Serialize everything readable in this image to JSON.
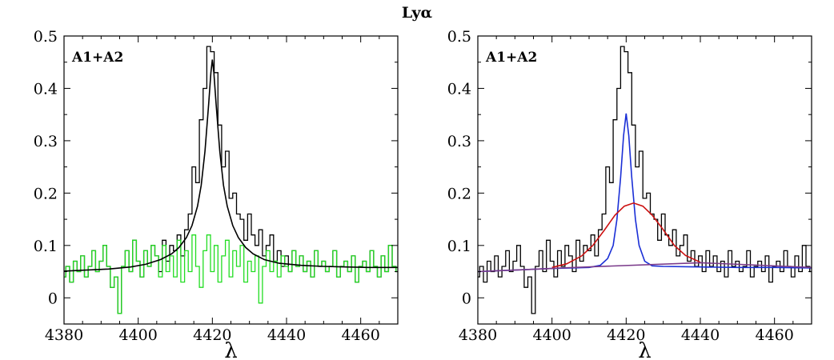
{
  "figure_title": "Lyα",
  "colors": {
    "data": "#000000",
    "fit_left": "#000000",
    "residual": "#22dd22",
    "narrow": "#1a2fd6",
    "broad": "#cc1111",
    "continuum": "#7a3a8a"
  },
  "chart_data": [
    {
      "type": "line",
      "panel": "left",
      "annotation": "A1+A2",
      "xlabel": "λ",
      "ylabel": "",
      "xlim": [
        4380,
        4470
      ],
      "ylim": [
        -0.05,
        0.5
      ],
      "xticks": [
        4380,
        4400,
        4420,
        4440,
        4460
      ],
      "yticks": [
        0,
        0.1,
        0.2,
        0.3,
        0.4,
        0.5
      ],
      "xtick_labels": [
        "4380",
        "4400",
        "4420",
        "4440",
        "4460"
      ],
      "ytick_labels": [
        "0",
        "0.1",
        "0.2",
        "0.3",
        "0.4",
        "0.5"
      ],
      "series": [
        {
          "style": "step",
          "color": "#000000",
          "x": [
            4380,
            4381,
            4382,
            4383,
            4384,
            4385,
            4386,
            4387,
            4388,
            4389,
            4390,
            4391,
            4392,
            4393,
            4394,
            4395,
            4396,
            4397,
            4398,
            4399,
            4400,
            4401,
            4402,
            4403,
            4404,
            4405,
            4406,
            4407,
            4408,
            4409,
            4410,
            4411,
            4412,
            4413,
            4414,
            4415,
            4416,
            4417,
            4418,
            4419,
            4420,
            4421,
            4422,
            4423,
            4424,
            4425,
            4426,
            4427,
            4428,
            4429,
            4430,
            4431,
            4432,
            4433,
            4434,
            4435,
            4436,
            4437,
            4438,
            4439,
            4440,
            4441,
            4442,
            4443,
            4444,
            4445,
            4446,
            4447,
            4448,
            4449,
            4450,
            4451,
            4452,
            4453,
            4454,
            4455,
            4456,
            4457,
            4458,
            4459,
            4460,
            4461,
            4462,
            4463,
            4464,
            4465,
            4466,
            4467,
            4468,
            4469,
            4470
          ],
          "y": [
            0.04,
            0.06,
            0.03,
            0.07,
            0.05,
            0.08,
            0.04,
            0.06,
            0.09,
            0.05,
            0.07,
            0.1,
            0.06,
            0.02,
            0.04,
            -0.03,
            0.06,
            0.09,
            0.05,
            0.11,
            0.07,
            0.04,
            0.09,
            0.06,
            0.1,
            0.08,
            0.05,
            0.11,
            0.07,
            0.1,
            0.09,
            0.12,
            0.08,
            0.13,
            0.16,
            0.25,
            0.22,
            0.34,
            0.4,
            0.48,
            0.47,
            0.43,
            0.33,
            0.25,
            0.28,
            0.19,
            0.2,
            0.16,
            0.15,
            0.11,
            0.16,
            0.12,
            0.1,
            0.13,
            0.08,
            0.1,
            0.12,
            0.07,
            0.09,
            0.06,
            0.08,
            0.05,
            0.09,
            0.06,
            0.08,
            0.05,
            0.07,
            0.04,
            0.09,
            0.06,
            0.07,
            0.05,
            0.06,
            0.09,
            0.04,
            0.06,
            0.07,
            0.05,
            0.08,
            0.03,
            0.06,
            0.07,
            0.05,
            0.09,
            0.06,
            0.04,
            0.08,
            0.05,
            0.1,
            0.06,
            0.05
          ]
        },
        {
          "style": "step",
          "color": "#22dd22",
          "x": [
            4380,
            4381,
            4382,
            4383,
            4384,
            4385,
            4386,
            4387,
            4388,
            4389,
            4390,
            4391,
            4392,
            4393,
            4394,
            4395,
            4396,
            4397,
            4398,
            4399,
            4400,
            4401,
            4402,
            4403,
            4404,
            4405,
            4406,
            4407,
            4408,
            4409,
            4410,
            4411,
            4412,
            4413,
            4414,
            4415,
            4416,
            4417,
            4418,
            4419,
            4420,
            4421,
            4422,
            4423,
            4424,
            4425,
            4426,
            4427,
            4428,
            4429,
            4430,
            4431,
            4432,
            4433,
            4434,
            4435,
            4436,
            4437,
            4438,
            4439,
            4440,
            4441,
            4442,
            4443,
            4444,
            4445,
            4446,
            4447,
            4448,
            4449,
            4450,
            4451,
            4452,
            4453,
            4454,
            4455,
            4456,
            4457,
            4458,
            4459,
            4460,
            4461,
            4462,
            4463,
            4464,
            4465,
            4466,
            4467,
            4468,
            4469,
            4470
          ],
          "y": [
            0.04,
            0.06,
            0.03,
            0.07,
            0.05,
            0.08,
            0.04,
            0.06,
            0.09,
            0.05,
            0.07,
            0.1,
            0.06,
            0.02,
            0.04,
            -0.03,
            0.06,
            0.09,
            0.05,
            0.11,
            0.07,
            0.04,
            0.09,
            0.06,
            0.1,
            0.08,
            0.04,
            0.1,
            0.05,
            0.08,
            0.04,
            0.11,
            0.03,
            0.09,
            0.05,
            0.12,
            0.06,
            0.02,
            0.09,
            0.12,
            0.05,
            0.1,
            0.03,
            0.08,
            0.11,
            0.04,
            0.09,
            0.06,
            0.1,
            0.03,
            0.07,
            0.05,
            0.08,
            -0.01,
            0.06,
            0.09,
            0.05,
            0.07,
            0.04,
            0.08,
            0.06,
            0.05,
            0.09,
            0.06,
            0.08,
            0.05,
            0.07,
            0.04,
            0.09,
            0.06,
            0.07,
            0.05,
            0.06,
            0.09,
            0.04,
            0.06,
            0.07,
            0.05,
            0.08,
            0.03,
            0.06,
            0.07,
            0.05,
            0.09,
            0.06,
            0.04,
            0.08,
            0.05,
            0.1,
            0.06,
            0.05
          ]
        },
        {
          "style": "line",
          "color": "#000000",
          "x": [
            4380,
            4386,
            4392,
            4398,
            4402,
            4406,
            4409,
            4411,
            4413,
            4414.5,
            4416,
            4417,
            4418,
            4419,
            4419.6,
            4420,
            4420.4,
            4421,
            4422,
            4423,
            4424,
            4425.5,
            4427,
            4429,
            4431,
            4434,
            4438,
            4444,
            4450,
            4456,
            4462,
            4470
          ],
          "y": [
            0.051,
            0.053,
            0.055,
            0.059,
            0.064,
            0.073,
            0.084,
            0.096,
            0.115,
            0.138,
            0.175,
            0.215,
            0.28,
            0.37,
            0.43,
            0.455,
            0.43,
            0.37,
            0.28,
            0.215,
            0.175,
            0.138,
            0.115,
            0.096,
            0.084,
            0.073,
            0.066,
            0.062,
            0.06,
            0.059,
            0.058,
            0.058
          ]
        }
      ]
    },
    {
      "type": "line",
      "panel": "right",
      "annotation": "A1+A2",
      "xlabel": "λ",
      "ylabel": "",
      "xlim": [
        4380,
        4470
      ],
      "ylim": [
        -0.05,
        0.5
      ],
      "xticks": [
        4380,
        4400,
        4420,
        4440,
        4460
      ],
      "yticks": [
        0,
        0.1,
        0.2,
        0.3,
        0.4,
        0.5
      ],
      "xtick_labels": [
        "4380",
        "4400",
        "4420",
        "4440",
        "4460"
      ],
      "ytick_labels": [
        "0",
        "0.1",
        "0.2",
        "0.3",
        "0.4",
        "0.5"
      ],
      "series": [
        {
          "style": "step",
          "color": "#000000",
          "x": [
            4380,
            4381,
            4382,
            4383,
            4384,
            4385,
            4386,
            4387,
            4388,
            4389,
            4390,
            4391,
            4392,
            4393,
            4394,
            4395,
            4396,
            4397,
            4398,
            4399,
            4400,
            4401,
            4402,
            4403,
            4404,
            4405,
            4406,
            4407,
            4408,
            4409,
            4410,
            4411,
            4412,
            4413,
            4414,
            4415,
            4416,
            4417,
            4418,
            4419,
            4420,
            4421,
            4422,
            4423,
            4424,
            4425,
            4426,
            4427,
            4428,
            4429,
            4430,
            4431,
            4432,
            4433,
            4434,
            4435,
            4436,
            4437,
            4438,
            4439,
            4440,
            4441,
            4442,
            4443,
            4444,
            4445,
            4446,
            4447,
            4448,
            4449,
            4450,
            4451,
            4452,
            4453,
            4454,
            4455,
            4456,
            4457,
            4458,
            4459,
            4460,
            4461,
            4462,
            4463,
            4464,
            4465,
            4466,
            4467,
            4468,
            4469,
            4470
          ],
          "y": [
            0.04,
            0.06,
            0.03,
            0.07,
            0.05,
            0.08,
            0.04,
            0.06,
            0.09,
            0.05,
            0.07,
            0.1,
            0.06,
            0.02,
            0.04,
            -0.03,
            0.06,
            0.09,
            0.05,
            0.11,
            0.07,
            0.04,
            0.09,
            0.06,
            0.1,
            0.08,
            0.05,
            0.11,
            0.07,
            0.1,
            0.09,
            0.12,
            0.08,
            0.13,
            0.16,
            0.25,
            0.22,
            0.34,
            0.4,
            0.48,
            0.47,
            0.43,
            0.33,
            0.25,
            0.28,
            0.19,
            0.2,
            0.16,
            0.15,
            0.11,
            0.16,
            0.12,
            0.1,
            0.13,
            0.08,
            0.1,
            0.12,
            0.07,
            0.09,
            0.06,
            0.08,
            0.05,
            0.09,
            0.06,
            0.08,
            0.05,
            0.07,
            0.04,
            0.09,
            0.06,
            0.07,
            0.05,
            0.06,
            0.09,
            0.04,
            0.06,
            0.07,
            0.05,
            0.08,
            0.03,
            0.06,
            0.07,
            0.05,
            0.09,
            0.06,
            0.04,
            0.08,
            0.05,
            0.1,
            0.06,
            0.05
          ]
        },
        {
          "style": "line",
          "color": "#1a2fd6",
          "x": [
            4380,
            4400,
            4410,
            4413,
            4415,
            4416.5,
            4417.5,
            4418.5,
            4419.3,
            4420,
            4420.7,
            4421.5,
            4422.5,
            4423.5,
            4425,
            4427,
            4430,
            4440,
            4450,
            4460,
            4470
          ],
          "y": [
            0.05,
            0.056,
            0.058,
            0.062,
            0.075,
            0.1,
            0.15,
            0.23,
            0.31,
            0.352,
            0.31,
            0.23,
            0.15,
            0.1,
            0.07,
            0.061,
            0.06,
            0.059,
            0.058,
            0.058,
            0.057
          ]
        },
        {
          "style": "line",
          "color": "#cc1111",
          "x": [
            4400,
            4404,
            4408,
            4411,
            4414,
            4417,
            4419.5,
            4422,
            4424.5,
            4427,
            4430,
            4433,
            4436,
            4440
          ],
          "y": [
            0.058,
            0.065,
            0.08,
            0.1,
            0.128,
            0.158,
            0.175,
            0.181,
            0.175,
            0.158,
            0.13,
            0.1,
            0.081,
            0.068
          ]
        },
        {
          "style": "line",
          "color": "#7a3a8a",
          "x": [
            4380,
            4400,
            4402,
            4440,
            4470
          ],
          "y": [
            0.05,
            0.056,
            0.057,
            0.067,
            0.058
          ]
        }
      ]
    }
  ]
}
